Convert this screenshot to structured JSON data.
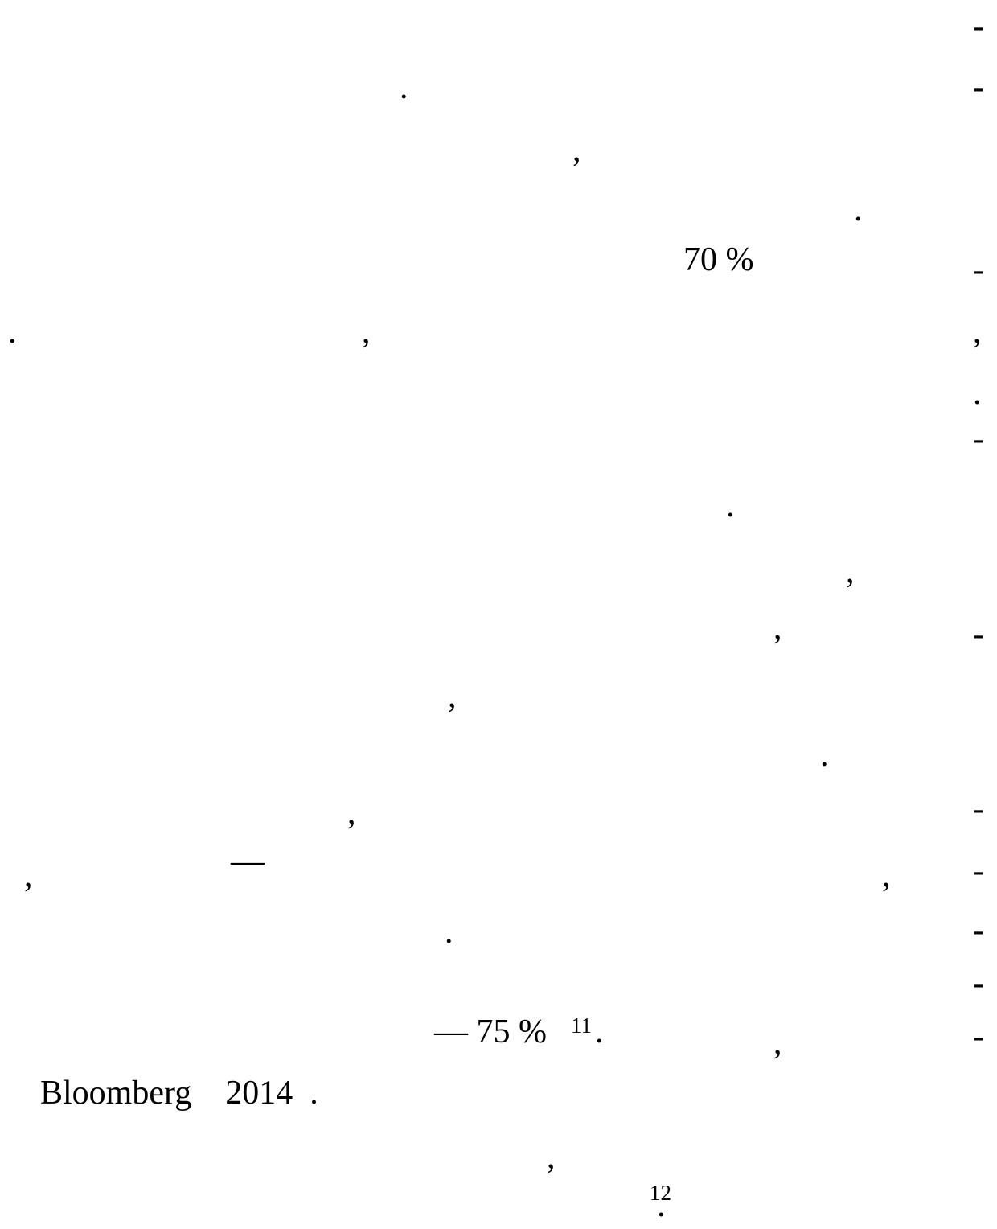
{
  "page": {
    "fragments": {
      "dash_1": "-",
      "period_1": ".",
      "dash_2": "-",
      "comma_1": ",",
      "period_2": ".",
      "pct_70": "70 %",
      "dash_3": "-",
      "period_3": ".",
      "comma_2": ",",
      "comma_3": ",",
      "period_4": ".",
      "dash_4": "-",
      "period_5": ".",
      "comma_4": ",",
      "comma_5": ",",
      "dash_5": "-",
      "comma_6": ",",
      "period_6": ".",
      "dash_6": "-",
      "comma_7": ",",
      "comma_8": ",",
      "emdash_1": "—",
      "comma_9": ",",
      "dash_7": "-",
      "period_7": ".",
      "dash_8": "-",
      "dash_9": "-",
      "pct_75": "— 75 %",
      "footnote_11": "11",
      "period_8": ".",
      "comma_10": ",",
      "dash_10": "-",
      "bloomberg_line": "Bloomberg    2014  .",
      "comma_11": ",",
      "footnote_12": "12",
      "period_9": "."
    }
  }
}
